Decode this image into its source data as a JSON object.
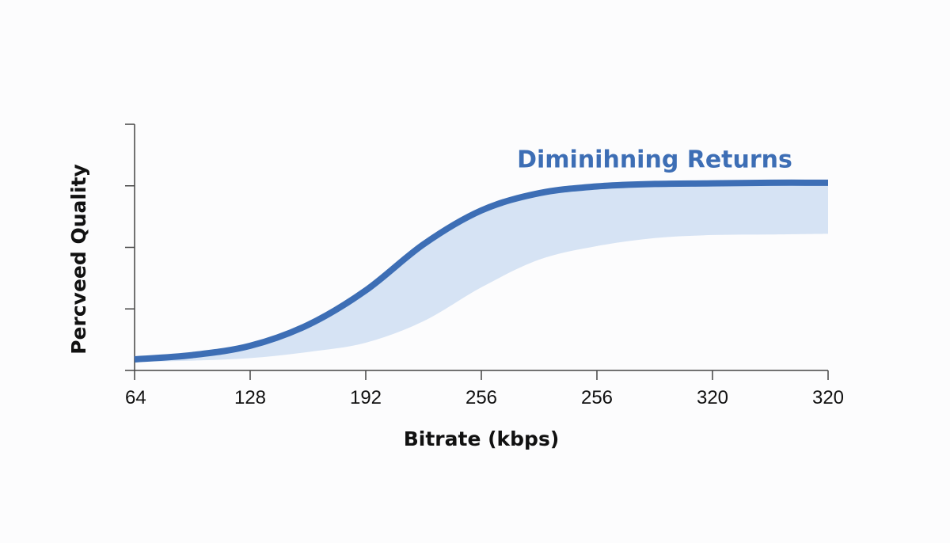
{
  "chart_data": {
    "type": "area",
    "title": "",
    "xlabel": "Bitrate (kbps)",
    "ylabel": "Percveed Quality",
    "x_tick_labels": [
      "64",
      "128",
      "192",
      "256",
      "256",
      "320",
      "320"
    ],
    "x_positions": [
      0,
      1,
      2,
      3,
      4,
      5,
      6
    ],
    "xlim": [
      0,
      6
    ],
    "ylim": [
      0,
      4
    ],
    "y_ticks": [
      0,
      1,
      2,
      3,
      4
    ],
    "y_tick_labels": [],
    "grid": false,
    "series": [
      {
        "role": "upper-line",
        "x": [
          0,
          0.5,
          1,
          1.5,
          2,
          2.5,
          3,
          3.5,
          4,
          4.5,
          5,
          5.5,
          6
        ],
        "y": [
          0.18,
          0.25,
          0.4,
          0.74,
          1.3,
          2.05,
          2.6,
          2.88,
          2.99,
          3.03,
          3.04,
          3.05,
          3.05
        ]
      },
      {
        "role": "band-lower",
        "x": [
          0,
          0.5,
          1,
          1.5,
          2,
          2.5,
          3,
          3.5,
          4,
          4.5,
          5,
          5.5,
          6
        ],
        "y": [
          0.14,
          0.16,
          0.2,
          0.3,
          0.45,
          0.8,
          1.35,
          1.8,
          2.02,
          2.15,
          2.2,
          2.21,
          2.22
        ]
      }
    ],
    "annotation": {
      "text": "Diminihning Returns",
      "x": 4.5,
      "y": 3.3
    },
    "colors": {
      "line": "#3d6eb5",
      "band": "#d6e3f4",
      "axis": "#444444",
      "annotation": "#3d6eb5"
    }
  }
}
